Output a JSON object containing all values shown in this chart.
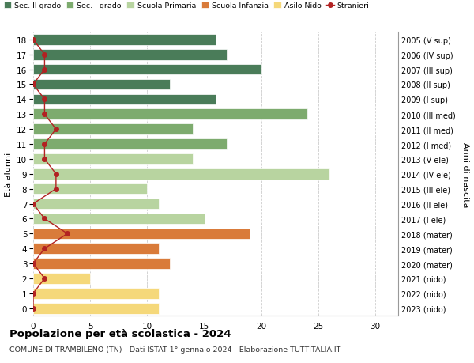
{
  "ages": [
    18,
    17,
    16,
    15,
    14,
    13,
    12,
    11,
    10,
    9,
    8,
    7,
    6,
    5,
    4,
    3,
    2,
    1,
    0
  ],
  "years": [
    "2005 (V sup)",
    "2006 (IV sup)",
    "2007 (III sup)",
    "2008 (II sup)",
    "2009 (I sup)",
    "2010 (III med)",
    "2011 (II med)",
    "2012 (I med)",
    "2013 (V ele)",
    "2014 (IV ele)",
    "2015 (III ele)",
    "2016 (II ele)",
    "2017 (I ele)",
    "2018 (mater)",
    "2019 (mater)",
    "2020 (mater)",
    "2021 (nido)",
    "2022 (nido)",
    "2023 (nido)"
  ],
  "bar_values": [
    16,
    17,
    20,
    12,
    16,
    24,
    14,
    17,
    14,
    26,
    10,
    11,
    15,
    19,
    11,
    12,
    5,
    11,
    11
  ],
  "stranieri_x_values": [
    0,
    1,
    1,
    0,
    1,
    1,
    2,
    1,
    1,
    2,
    2,
    0,
    1,
    3,
    1,
    0,
    1,
    0,
    0
  ],
  "bar_colors": [
    "#4a7c59",
    "#4a7c59",
    "#4a7c59",
    "#4a7c59",
    "#4a7c59",
    "#7dab6e",
    "#7dab6e",
    "#7dab6e",
    "#b8d4a0",
    "#b8d4a0",
    "#b8d4a0",
    "#b8d4a0",
    "#b8d4a0",
    "#d97b3a",
    "#d97b3a",
    "#d97b3a",
    "#f5d87a",
    "#f5d87a",
    "#f5d87a"
  ],
  "legend_labels": [
    "Sec. II grado",
    "Sec. I grado",
    "Scuola Primaria",
    "Scuola Infanzia",
    "Asilo Nido",
    "Stranieri"
  ],
  "legend_colors": [
    "#4a7c59",
    "#7dab6e",
    "#b8d4a0",
    "#d97b3a",
    "#f5d87a",
    "#b22222"
  ],
  "stranieri_color": "#b22222",
  "ylabel_left": "Età alunni",
  "ylabel_right": "Anni di nascita",
  "title": "Popolazione per età scolastica - 2024",
  "subtitle": "COMUNE DI TRAMBILENO (TN) - Dati ISTAT 1° gennaio 2024 - Elaborazione TUTTITALIA.IT",
  "xlim": [
    0,
    32
  ],
  "xticks": [
    0,
    5,
    10,
    15,
    20,
    25,
    30
  ],
  "background_color": "#ffffff",
  "grid_color": "#cccccc"
}
